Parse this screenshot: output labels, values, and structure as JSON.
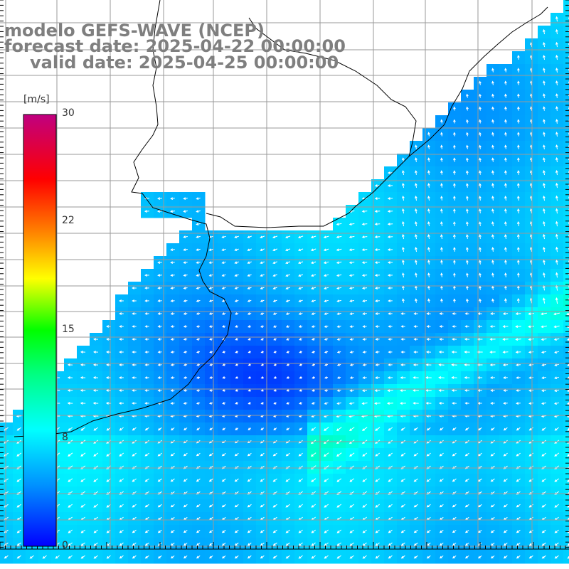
{
  "title": {
    "line1": "modelo GEFS-WAVE (NCEP)",
    "line2": "forecast date: 2025-04-22 00:00:00",
    "line3": "valid date: 2025-04-25 00:00:00"
  },
  "colorbar": {
    "unit": "[m/s]",
    "ticks": [
      "30",
      "22",
      "15",
      "8",
      "0"
    ],
    "tick_values": [
      30,
      22,
      15,
      8,
      0
    ],
    "range": [
      0,
      30
    ]
  },
  "colors": {
    "low": "#0000ff",
    "mid": "#00ffff",
    "high": "#ff0000",
    "max": "#c00080",
    "land": "#ffffff",
    "grid": "#aaaaaa",
    "coast": "#000000"
  },
  "chart_data": {
    "type": "heatmap",
    "variable": "wind speed with direction arrows",
    "color_scale_range": [
      0,
      30
    ],
    "observed_range_approx": [
      1,
      10
    ],
    "grid": true
  }
}
